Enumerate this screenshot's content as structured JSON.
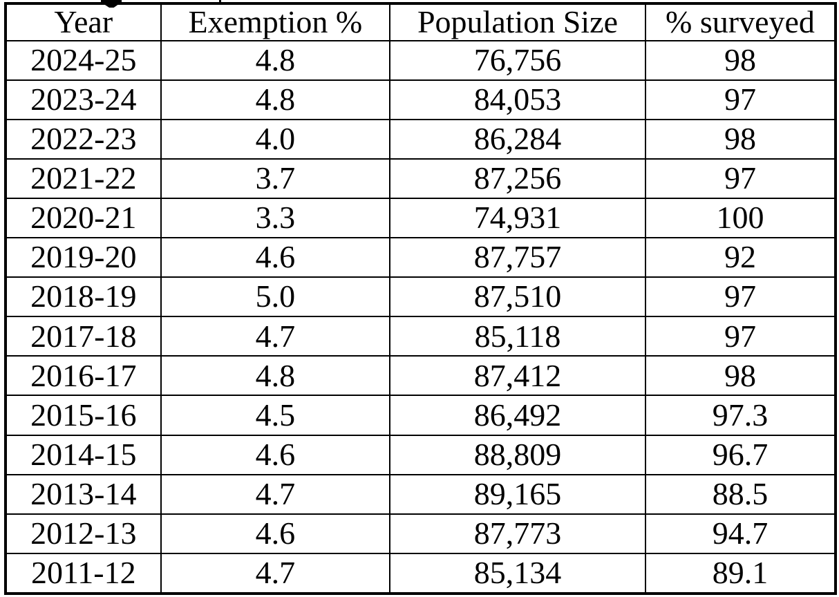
{
  "table": {
    "headers": [
      "Year",
      "Exemption %",
      "Population Size",
      "% surveyed"
    ],
    "rows": [
      {
        "year": "2024-25",
        "exemption": "4.8",
        "population": "76,756",
        "surveyed": "98"
      },
      {
        "year": "2023-24",
        "exemption": "4.8",
        "population": "84,053",
        "surveyed": "97"
      },
      {
        "year": "2022-23",
        "exemption": "4.0",
        "population": "86,284",
        "surveyed": "98"
      },
      {
        "year": "2021-22",
        "exemption": "3.7",
        "population": "87,256",
        "surveyed": "97"
      },
      {
        "year": "2020-21",
        "exemption": "3.3",
        "population": "74,931",
        "surveyed": "100"
      },
      {
        "year": "2019-20",
        "exemption": "4.6",
        "population": "87,757",
        "surveyed": "92"
      },
      {
        "year": "2018-19",
        "exemption": "5.0",
        "population": "87,510",
        "surveyed": "97"
      },
      {
        "year": "2017-18",
        "exemption": "4.7",
        "population": "85,118",
        "surveyed": "97"
      },
      {
        "year": "2016-17",
        "exemption": "4.8",
        "population": "87,412",
        "surveyed": "98"
      },
      {
        "year": "2015-16",
        "exemption": "4.5",
        "population": "86,492",
        "surveyed": "97.3"
      },
      {
        "year": "2014-15",
        "exemption": "4.6",
        "population": "88,809",
        "surveyed": "96.7"
      },
      {
        "year": "2013-14",
        "exemption": "4.7",
        "population": "89,165",
        "surveyed": "88.5"
      },
      {
        "year": "2012-13",
        "exemption": "4.6",
        "population": "87,773",
        "surveyed": "94.7"
      },
      {
        "year": "2011-12",
        "exemption": "4.7",
        "population": "85,134",
        "surveyed": "89.1"
      }
    ],
    "colors": {
      "text": "#000000",
      "border": "#000000",
      "background": "#ffffff"
    }
  }
}
